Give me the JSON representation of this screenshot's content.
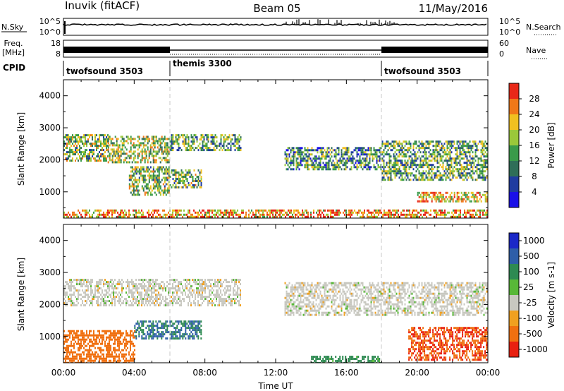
{
  "header": {
    "radar": "Inuvik (fitACF)",
    "beam": "Beam 05",
    "date": "11/May/2016"
  },
  "panels": {
    "nsky": {
      "label": "N.Sky",
      "ticks": [
        "10^5",
        "10^0"
      ],
      "right_label": "N.Search",
      "right_ticks": [
        "10^5",
        "10^0"
      ]
    },
    "freq": {
      "label_line1": "Freq.",
      "label_line2": "[MHz]",
      "ticks": [
        "18",
        "8"
      ],
      "right_label": "Nave",
      "right_ticks": [
        "60",
        "0"
      ]
    },
    "cpid": {
      "label": "CPID",
      "segments": [
        {
          "name": "twofsound 3503",
          "start_h": 0,
          "end_h": 6
        },
        {
          "name": "themis 3300",
          "start_h": 6,
          "end_h": 18
        },
        {
          "name": "twofsound 3503",
          "start_h": 18,
          "end_h": 24
        }
      ]
    }
  },
  "chart_data": [
    {
      "type": "heatmap",
      "title": "",
      "ylabel": "Slant Range [km]",
      "xlim": [
        0,
        24
      ],
      "ylim": [
        180,
        4500
      ],
      "y_ticks": [
        1000,
        2000,
        3000,
        4000
      ],
      "colorbar": {
        "label": "Power [dB]",
        "range": [
          0,
          32
        ],
        "ticks": [
          "4",
          "8",
          "12",
          "16",
          "20",
          "24",
          "28"
        ]
      },
      "scatter_regions": [
        {
          "t_start": 0.0,
          "t_end": 2.5,
          "range_km": [
            1950,
            2800
          ],
          "power_db": 16
        },
        {
          "t_start": 2.5,
          "t_end": 6.0,
          "range_km": [
            1900,
            2750
          ],
          "power_db": 18
        },
        {
          "t_start": 6.0,
          "t_end": 10.0,
          "range_km": [
            2300,
            2800
          ],
          "power_db": 14
        },
        {
          "t_start": 3.7,
          "t_end": 6.0,
          "range_km": [
            900,
            1800
          ],
          "power_db": 16
        },
        {
          "t_start": 6.0,
          "t_end": 7.8,
          "range_km": [
            1150,
            1700
          ],
          "power_db": 15
        },
        {
          "t_start": 12.5,
          "t_end": 18.0,
          "range_km": [
            1700,
            2400
          ],
          "power_db": 12
        },
        {
          "t_start": 18.0,
          "t_end": 24.0,
          "range_km": [
            1400,
            2600
          ],
          "power_db": 14
        },
        {
          "t_start": 20.0,
          "t_end": 24.0,
          "range_km": [
            700,
            1000
          ],
          "power_db": 22
        },
        {
          "t_start": 0.0,
          "t_end": 24.0,
          "range_km": [
            180,
            450
          ],
          "power_db": 24
        }
      ]
    },
    {
      "type": "heatmap",
      "title": "",
      "ylabel": "Slant Range [km]",
      "xlabel": "Time UT",
      "xlim": [
        0,
        24
      ],
      "ylim": [
        180,
        4500
      ],
      "y_ticks": [
        1000,
        2000,
        3000,
        4000
      ],
      "x_ticks": [
        "00:00",
        "04:00",
        "08:00",
        "12:00",
        "16:00",
        "20:00",
        "00:00"
      ],
      "colorbar": {
        "label": "Velocity [m s-1]",
        "ticks": [
          "1000",
          "500",
          "100",
          "25",
          "-25",
          "-100",
          "-500",
          "-1000"
        ]
      },
      "scatter_regions": [
        {
          "t_start": 0.0,
          "t_end": 10.0,
          "range_km": [
            1950,
            2800
          ],
          "velocity_ms": 0
        },
        {
          "t_start": 12.5,
          "t_end": 24.0,
          "range_km": [
            1700,
            2700
          ],
          "velocity_ms": 0
        },
        {
          "t_start": 4.0,
          "t_end": 7.8,
          "range_km": [
            950,
            1500
          ],
          "velocity_ms": 300
        },
        {
          "t_start": 0.0,
          "t_end": 4.0,
          "range_km": [
            200,
            1200
          ],
          "velocity_ms": -300
        },
        {
          "t_start": 19.5,
          "t_end": 24.0,
          "range_km": [
            300,
            1300
          ],
          "velocity_ms": -500
        },
        {
          "t_start": 14.0,
          "t_end": 18.0,
          "range_km": [
            200,
            400
          ],
          "velocity_ms": 80
        }
      ]
    }
  ],
  "colors": {
    "power_scale": [
      "#1a10e8",
      "#203ca0",
      "#2f6e58",
      "#3a9a4a",
      "#9ac83a",
      "#f0c020",
      "#f07818",
      "#e82818"
    ],
    "velocity_scale": [
      "#1a28c8",
      "#2e5ea8",
      "#2e8a52",
      "#58b838",
      "#c8c8c0",
      "#f0a020",
      "#f07010",
      "#e82010"
    ]
  }
}
